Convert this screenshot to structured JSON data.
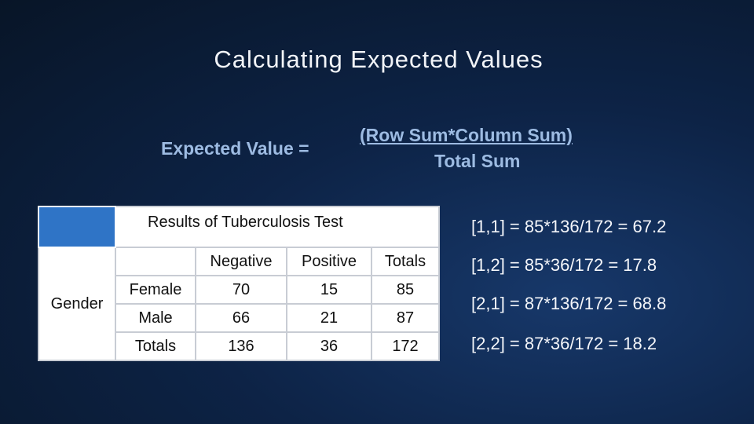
{
  "title": "Calculating Expected Values",
  "formula": {
    "label": "Expected Value =",
    "numerator": "(Row Sum*Column Sum)",
    "denominator": "Total Sum"
  },
  "table": {
    "caption": "Results of Tuberculosis Test",
    "columns": [
      "Negative",
      "Positive",
      "Totals"
    ],
    "row_group": "Gender",
    "rows": [
      [
        "Female",
        70,
        15,
        85
      ],
      [
        "Male",
        66,
        21,
        87
      ],
      [
        "Totals",
        136,
        36,
        172
      ]
    ]
  },
  "calculations": [
    "[1,1] = 85*136/172 = 67.2",
    "[1,2] = 85*36/172 = 17.8",
    "[2,1] = 87*136/172 = 68.8",
    "[2,2] = 87*36/172 = 18.2"
  ]
}
